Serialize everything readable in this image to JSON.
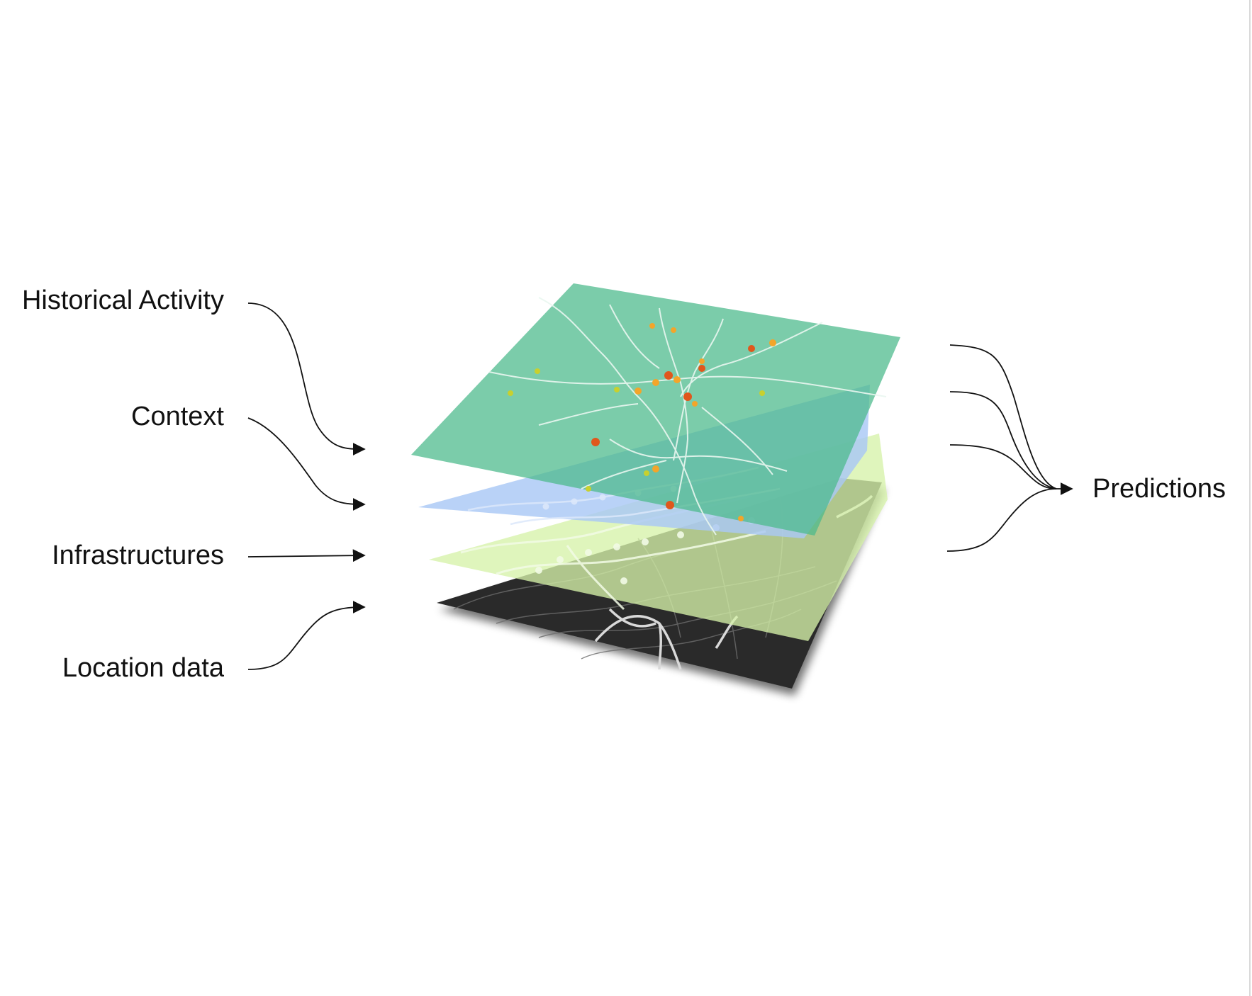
{
  "inputs": [
    {
      "label": "Historical Activity"
    },
    {
      "label": "Context"
    },
    {
      "label": "Infrastructures"
    },
    {
      "label": "Location data"
    }
  ],
  "output": {
    "label": "Predictions"
  },
  "layers": [
    {
      "name": "location-data-layer",
      "color": "#2a2a2a"
    },
    {
      "name": "infrastructures-layer",
      "color": "#d6f2a9"
    },
    {
      "name": "context-layer",
      "color": "#a9c8f5"
    },
    {
      "name": "historical-activity-layer",
      "color": "#4dba8c"
    }
  ],
  "colors": {
    "arrow": "#111111",
    "roads": "#ffffff",
    "hotspot_hot": "#e0571c",
    "hotspot_warm": "#f3a52a",
    "hotspot_cool": "#c8d02e"
  }
}
